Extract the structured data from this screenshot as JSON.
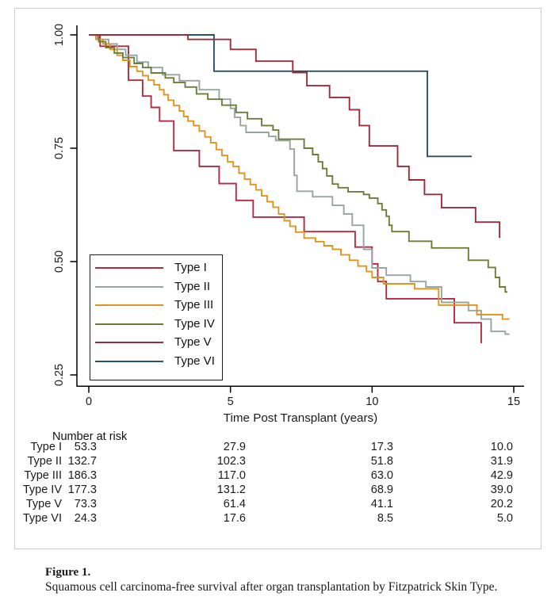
{
  "figure": {
    "caption_title": "Figure 1.",
    "caption_text": "Squamous cell carcinoma-free survival after organ transplantation by Fitzpatrick Skin Type."
  },
  "chart_data": {
    "type": "line",
    "subtype": "kaplan-meier-step",
    "title": "",
    "xlabel": "Time Post Transplant (years)",
    "ylabel": "",
    "xlim": [
      0,
      15.4
    ],
    "ylim": [
      0.22,
      1.02
    ],
    "x_ticks": [
      0,
      5,
      10,
      15
    ],
    "y_ticks": [
      {
        "label": "1.00",
        "value": 1.0
      },
      {
        "label": "0.75",
        "value": 0.75
      },
      {
        "label": "0.50",
        "value": 0.5
      },
      {
        "label": "0.25",
        "value": 0.25
      }
    ],
    "grid": false,
    "legend_position": "lower-left-inside",
    "axis_color": "#000000",
    "series": [
      {
        "name": "Type I",
        "color": "#b12a40",
        "points": [
          [
            0,
            1.0
          ],
          [
            0.4,
            0.975
          ],
          [
            1.4,
            0.9
          ],
          [
            1.9,
            0.865
          ],
          [
            2.2,
            0.84
          ],
          [
            2.5,
            0.81
          ],
          [
            3.0,
            0.745
          ],
          [
            3.9,
            0.71
          ],
          [
            4.6,
            0.672
          ],
          [
            5.2,
            0.635
          ],
          [
            5.8,
            0.598
          ],
          [
            7.6,
            0.566
          ],
          [
            9.4,
            0.532
          ],
          [
            10.0,
            0.495
          ],
          [
            10.2,
            0.456
          ],
          [
            10.5,
            0.418
          ],
          [
            12.9,
            0.365
          ],
          [
            13.85,
            0.32
          ]
        ],
        "end_t": null
      },
      {
        "name": "Type II",
        "color": "#96a5a2",
        "points": [
          [
            0,
            1.0
          ],
          [
            0.3,
            0.99
          ],
          [
            0.7,
            0.98
          ],
          [
            1.0,
            0.968
          ],
          [
            1.3,
            0.955
          ],
          [
            1.7,
            0.94
          ],
          [
            2.1,
            0.928
          ],
          [
            2.6,
            0.912
          ],
          [
            3.2,
            0.899
          ],
          [
            3.9,
            0.879
          ],
          [
            4.6,
            0.858
          ],
          [
            5.0,
            0.838
          ],
          [
            5.15,
            0.818
          ],
          [
            5.35,
            0.8
          ],
          [
            5.55,
            0.785
          ],
          [
            6.35,
            0.776
          ],
          [
            6.6,
            0.767
          ],
          [
            7.1,
            0.748
          ],
          [
            7.25,
            0.69
          ],
          [
            7.35,
            0.655
          ],
          [
            7.9,
            0.643
          ],
          [
            8.6,
            0.624
          ],
          [
            9.0,
            0.605
          ],
          [
            9.3,
            0.58
          ],
          [
            9.7,
            0.527
          ],
          [
            10.0,
            0.486
          ],
          [
            10.5,
            0.47
          ],
          [
            11.35,
            0.456
          ],
          [
            11.9,
            0.444
          ],
          [
            12.45,
            0.41
          ],
          [
            13.4,
            0.392
          ],
          [
            13.85,
            0.373
          ],
          [
            14.2,
            0.346
          ],
          [
            14.7,
            0.34
          ]
        ],
        "end_t": 14.85
      },
      {
        "name": "Type III",
        "color": "#e0941f",
        "points": [
          [
            0,
            1.0
          ],
          [
            0.25,
            0.99
          ],
          [
            0.5,
            0.98
          ],
          [
            0.75,
            0.968
          ],
          [
            1.0,
            0.955
          ],
          [
            1.2,
            0.944
          ],
          [
            1.45,
            0.93
          ],
          [
            1.7,
            0.92
          ],
          [
            1.9,
            0.91
          ],
          [
            2.1,
            0.9
          ],
          [
            2.3,
            0.89
          ],
          [
            2.5,
            0.879
          ],
          [
            2.65,
            0.868
          ],
          [
            2.8,
            0.856
          ],
          [
            3.0,
            0.844
          ],
          [
            3.2,
            0.832
          ],
          [
            3.35,
            0.82
          ],
          [
            3.5,
            0.81
          ],
          [
            3.7,
            0.8
          ],
          [
            3.9,
            0.788
          ],
          [
            4.1,
            0.775
          ],
          [
            4.3,
            0.762
          ],
          [
            4.5,
            0.747
          ],
          [
            4.7,
            0.734
          ],
          [
            4.9,
            0.72
          ],
          [
            5.1,
            0.71
          ],
          [
            5.3,
            0.695
          ],
          [
            5.5,
            0.682
          ],
          [
            5.7,
            0.67
          ],
          [
            5.9,
            0.658
          ],
          [
            6.1,
            0.645
          ],
          [
            6.3,
            0.632
          ],
          [
            6.5,
            0.62
          ],
          [
            6.7,
            0.605
          ],
          [
            6.9,
            0.59
          ],
          [
            7.1,
            0.578
          ],
          [
            7.3,
            0.565
          ],
          [
            7.6,
            0.552
          ],
          [
            8.0,
            0.544
          ],
          [
            8.3,
            0.535
          ],
          [
            8.6,
            0.527
          ],
          [
            8.9,
            0.515
          ],
          [
            9.2,
            0.503
          ],
          [
            9.5,
            0.49
          ],
          [
            9.8,
            0.478
          ],
          [
            10.0,
            0.465
          ],
          [
            10.4,
            0.451
          ],
          [
            11.5,
            0.44
          ],
          [
            12.35,
            0.404
          ],
          [
            13.7,
            0.383
          ],
          [
            14.6,
            0.373
          ]
        ],
        "end_t": 14.85
      },
      {
        "name": "Type IV",
        "color": "#6b7d38",
        "points": [
          [
            0,
            1.0
          ],
          [
            0.35,
            0.985
          ],
          [
            0.6,
            0.972
          ],
          [
            0.9,
            0.96
          ],
          [
            1.2,
            0.95
          ],
          [
            1.6,
            0.937
          ],
          [
            1.9,
            0.928
          ],
          [
            2.2,
            0.916
          ],
          [
            2.7,
            0.905
          ],
          [
            3.0,
            0.895
          ],
          [
            3.4,
            0.885
          ],
          [
            3.8,
            0.87
          ],
          [
            4.2,
            0.858
          ],
          [
            4.7,
            0.845
          ],
          [
            5.2,
            0.829
          ],
          [
            5.6,
            0.815
          ],
          [
            6.1,
            0.8
          ],
          [
            6.5,
            0.79
          ],
          [
            6.7,
            0.77
          ],
          [
            7.6,
            0.75
          ],
          [
            7.9,
            0.736
          ],
          [
            8.1,
            0.72
          ],
          [
            8.25,
            0.705
          ],
          [
            8.4,
            0.689
          ],
          [
            8.6,
            0.671
          ],
          [
            8.8,
            0.663
          ],
          [
            9.15,
            0.654
          ],
          [
            9.7,
            0.648
          ],
          [
            9.9,
            0.64
          ],
          [
            10.2,
            0.628
          ],
          [
            10.35,
            0.614
          ],
          [
            10.5,
            0.6
          ],
          [
            10.6,
            0.58
          ],
          [
            10.7,
            0.566
          ],
          [
            11.3,
            0.545
          ],
          [
            12.1,
            0.53
          ],
          [
            13.4,
            0.503
          ],
          [
            14.1,
            0.487
          ],
          [
            14.35,
            0.465
          ],
          [
            14.5,
            0.444
          ],
          [
            14.7,
            0.433
          ]
        ],
        "end_t": 14.78
      },
      {
        "name": "Type V",
        "color": "#9d2c39",
        "points": [
          [
            0,
            1.0
          ],
          [
            3.5,
            0.99
          ],
          [
            5.0,
            0.968
          ],
          [
            5.9,
            0.942
          ],
          [
            7.2,
            0.917
          ],
          [
            7.7,
            0.888
          ],
          [
            8.5,
            0.862
          ],
          [
            9.2,
            0.835
          ],
          [
            9.55,
            0.8
          ],
          [
            9.9,
            0.755
          ],
          [
            10.9,
            0.71
          ],
          [
            11.3,
            0.68
          ],
          [
            11.85,
            0.648
          ],
          [
            12.45,
            0.619
          ],
          [
            13.65,
            0.587
          ],
          [
            14.5,
            0.552
          ]
        ],
        "end_t": null
      },
      {
        "name": "Type VI",
        "color": "#27506e",
        "points": [
          [
            0,
            1.0
          ],
          [
            4.42,
            0.92
          ],
          [
            11.95,
            0.732
          ]
        ],
        "end_t": 13.52
      }
    ],
    "draw_order": [
      0,
      1,
      2,
      3,
      5,
      4
    ]
  },
  "risk_table": {
    "title": "Number at risk",
    "time_points": [
      0,
      5,
      10,
      15
    ],
    "rows": [
      {
        "label": "Type I",
        "values": [
          "53.3",
          "27.9",
          "17.3",
          "10.0"
        ]
      },
      {
        "label": "Type II",
        "values": [
          "132.7",
          "102.3",
          "51.8",
          "31.9"
        ]
      },
      {
        "label": "Type III",
        "values": [
          "186.3",
          "117.0",
          "63.0",
          "42.9"
        ]
      },
      {
        "label": "Type IV",
        "values": [
          "177.3",
          "131.2",
          "68.9",
          "39.0"
        ]
      },
      {
        "label": "Type V",
        "values": [
          "73.3",
          "61.4",
          "41.1",
          "20.2"
        ]
      },
      {
        "label": "Type VI",
        "values": [
          "24.3",
          "17.6",
          "8.5",
          "5.0"
        ]
      }
    ]
  }
}
